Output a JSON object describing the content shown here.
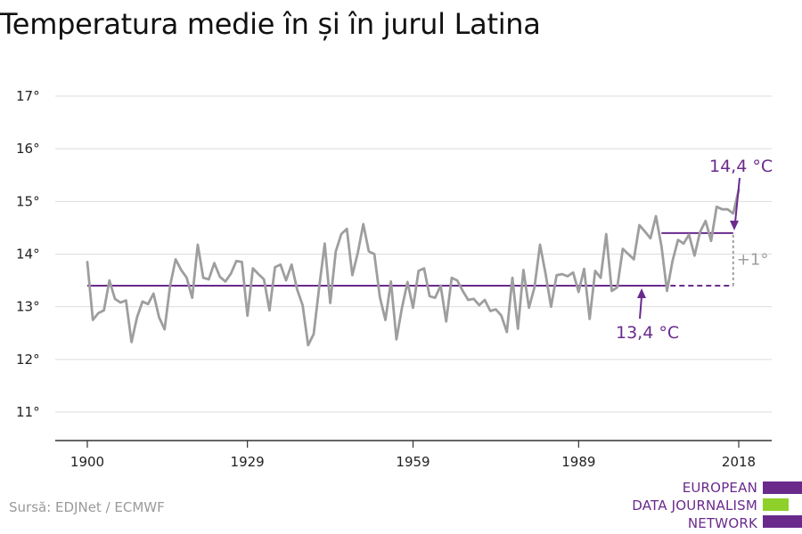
{
  "page": {
    "title": "Temperatura medie în și în jurul Latina",
    "source": "Sursă: EDJNet / ECMWF"
  },
  "logo": {
    "lines": [
      "EUROPEAN",
      "DATA JOURNALISM",
      "NETWORK"
    ],
    "colors": [
      "#6a2a8c",
      "#8fd12a",
      "#6a2a8c"
    ]
  },
  "colors": {
    "series": "#9e9e9e",
    "accent": "#6a2a8c",
    "grid": "#dddddd",
    "axis": "#333333",
    "delta": "#9e9e9e"
  },
  "chart_data": {
    "type": "line",
    "title": "Temperatura medie în și în jurul Latina",
    "xlabel": "",
    "ylabel": "",
    "xlim": [
      1900,
      2018
    ],
    "ylim": [
      10.5,
      17.3
    ],
    "grid": true,
    "x_ticks": [
      1900,
      1929,
      1959,
      1989,
      2018
    ],
    "x_tick_labels": [
      "1900",
      "1929",
      "1959",
      "1989",
      "2018"
    ],
    "y_ticks": [
      11,
      12,
      13,
      14,
      15,
      16,
      17
    ],
    "y_tick_labels": [
      "11°",
      "12°",
      "13°",
      "14°",
      "15°",
      "16°",
      "17°"
    ],
    "series": [
      {
        "x_start": 1900,
        "x_step": 1,
        "values": [
          13.85,
          12.75,
          12.88,
          12.93,
          13.5,
          13.15,
          13.08,
          13.12,
          12.33,
          12.8,
          13.1,
          13.05,
          13.25,
          12.8,
          12.57,
          13.4,
          13.9,
          13.7,
          13.55,
          13.17,
          14.18,
          13.55,
          13.52,
          13.83,
          13.57,
          13.48,
          13.63,
          13.87,
          13.85,
          12.83,
          13.73,
          13.62,
          13.52,
          12.93,
          13.75,
          13.8,
          13.5,
          13.8,
          13.33,
          13.03,
          12.27,
          12.48,
          13.37,
          14.2,
          13.07,
          14.05,
          14.38,
          14.48,
          13.6,
          14.03,
          14.57,
          14.05,
          14.0,
          13.18,
          12.75,
          13.48,
          12.38,
          12.98,
          13.47,
          12.98,
          13.68,
          13.73,
          13.2,
          13.17,
          13.4,
          12.72,
          13.55,
          13.5,
          13.3,
          13.13,
          13.15,
          13.03,
          13.13,
          12.92,
          12.95,
          12.83,
          12.52,
          13.55,
          12.58,
          13.7,
          12.98,
          13.37,
          14.18,
          13.63,
          13.0,
          13.6,
          13.62,
          13.58,
          13.65,
          13.28,
          13.72,
          12.77,
          13.68,
          13.55,
          14.38,
          13.3,
          13.37,
          14.1,
          14.0,
          13.9,
          14.55,
          14.43,
          14.3,
          14.72,
          14.15,
          13.3,
          13.87,
          14.27,
          14.2,
          14.37,
          13.97,
          14.42,
          14.63,
          14.25,
          14.9,
          14.85,
          14.85,
          14.77,
          15.22
        ]
      }
    ],
    "reference_lines": [
      {
        "label": "13,4 °C",
        "value": 13.4,
        "x_start": 1900,
        "x_end": 2004,
        "style": "solid"
      },
      {
        "value": 13.4,
        "x_start": 2004,
        "x_end": 2017,
        "style": "dashed"
      },
      {
        "label": "14,4 °C",
        "value": 14.4,
        "x_start": 2004,
        "x_end": 2017,
        "style": "solid"
      }
    ],
    "annotations": {
      "delta_label": "+1°",
      "low_label": "13,4 °C",
      "high_label": "14,4 °C"
    }
  }
}
